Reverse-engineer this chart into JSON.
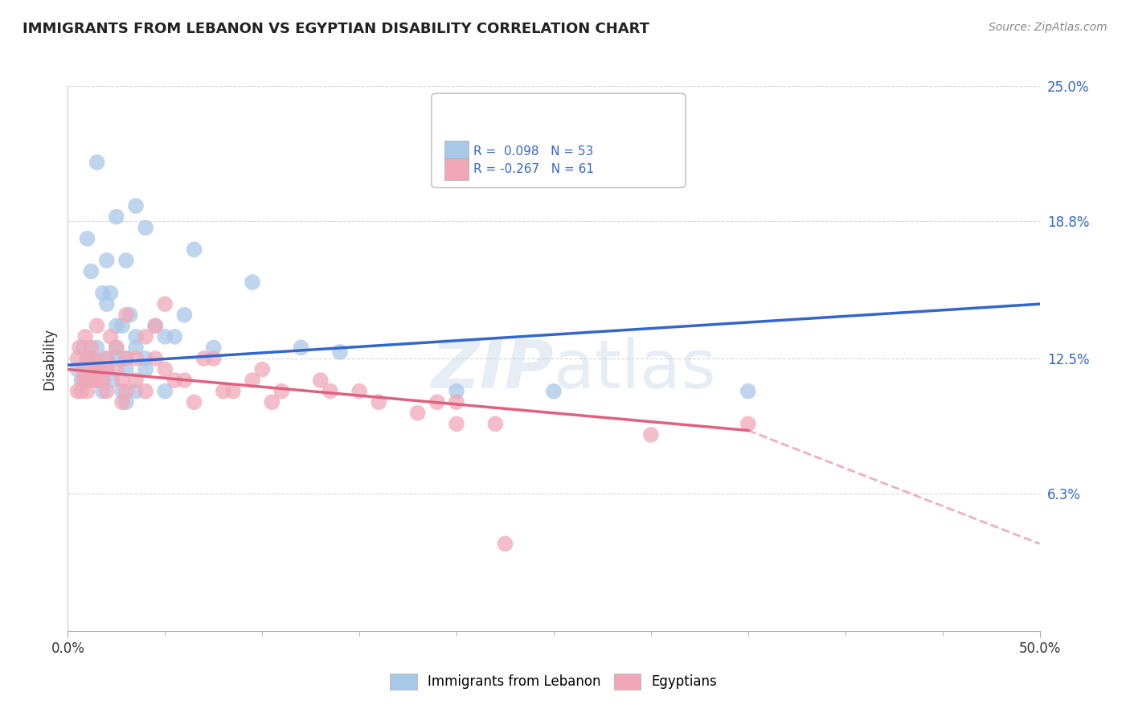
{
  "title": "IMMIGRANTS FROM LEBANON VS EGYPTIAN DISABILITY CORRELATION CHART",
  "source": "Source: ZipAtlas.com",
  "ylabel": "Disability",
  "xmin": 0.0,
  "xmax": 50.0,
  "ymin": 0.0,
  "ymax": 25.0,
  "legend_r1": "R =  0.098",
  "legend_n1": "N = 53",
  "legend_r2": "R = -0.267",
  "legend_n2": "N = 61",
  "legend_label1": "Immigrants from Lebanon",
  "legend_label2": "Egyptians",
  "color_blue": "#a8c8e8",
  "color_pink": "#f0a8b8",
  "trend_blue": "#3366cc",
  "trend_pink": "#e06080",
  "background_color": "#ffffff",
  "grid_color": "#d8d8d8",
  "blue_trend_x0": 0.0,
  "blue_trend_y0": 12.2,
  "blue_trend_x1": 50.0,
  "blue_trend_y1": 15.0,
  "pink_solid_x0": 0.0,
  "pink_solid_y0": 12.0,
  "pink_solid_x1": 35.0,
  "pink_solid_y1": 9.2,
  "pink_dash_x0": 35.0,
  "pink_dash_y0": 9.2,
  "pink_dash_x1": 50.0,
  "pink_dash_y1": 4.0,
  "blue_x": [
    1.5,
    3.5,
    6.5,
    9.5,
    2.5,
    4.0,
    1.0,
    2.0,
    3.0,
    1.2,
    2.2,
    1.8,
    3.2,
    2.8,
    4.5,
    5.5,
    6.0,
    7.5,
    0.8,
    1.5,
    2.5,
    3.5,
    1.3,
    2.0,
    2.5,
    3.0,
    0.5,
    1.0,
    1.5,
    2.0,
    3.0,
    4.0,
    1.2,
    0.7,
    2.3,
    1.8,
    3.5,
    2.8,
    5.0,
    1.0,
    1.5,
    3.0,
    1.0,
    4.0,
    14.0,
    20.0,
    25.0,
    35.0,
    2.0,
    2.5,
    3.5,
    5.0,
    12.0
  ],
  "blue_y": [
    21.5,
    19.5,
    17.5,
    16.0,
    19.0,
    18.5,
    18.0,
    17.0,
    17.0,
    16.5,
    15.5,
    15.5,
    14.5,
    14.0,
    14.0,
    13.5,
    14.5,
    13.0,
    13.0,
    13.0,
    13.0,
    13.0,
    12.5,
    12.5,
    12.5,
    12.5,
    12.0,
    12.0,
    12.0,
    12.0,
    12.0,
    12.0,
    11.5,
    11.5,
    11.5,
    11.0,
    11.0,
    11.0,
    11.0,
    11.5,
    11.5,
    10.5,
    12.5,
    12.5,
    12.8,
    11.0,
    11.0,
    11.0,
    15.0,
    14.0,
    13.5,
    13.5,
    13.0
  ],
  "pink_x": [
    0.5,
    0.8,
    1.0,
    1.2,
    1.5,
    1.8,
    0.6,
    0.9,
    1.3,
    1.6,
    2.0,
    2.5,
    3.0,
    2.2,
    1.5,
    2.8,
    3.5,
    1.0,
    0.5,
    1.0,
    1.5,
    0.8,
    2.0,
    3.0,
    1.5,
    2.5,
    4.0,
    0.7,
    1.2,
    2.0,
    2.8,
    3.5,
    5.0,
    7.0,
    6.0,
    8.0,
    9.5,
    10.0,
    11.0,
    13.0,
    15.0,
    18.0,
    20.0,
    3.0,
    5.5,
    4.5,
    7.5,
    5.0,
    20.0,
    4.0,
    6.5,
    4.5,
    8.5,
    10.5,
    13.5,
    16.0,
    19.0,
    22.0,
    30.0,
    35.0,
    22.5
  ],
  "pink_y": [
    12.5,
    12.0,
    12.5,
    13.0,
    12.0,
    11.5,
    13.0,
    13.5,
    12.5,
    12.0,
    12.5,
    12.0,
    12.5,
    13.5,
    14.0,
    11.5,
    12.5,
    11.5,
    11.0,
    11.0,
    11.5,
    11.5,
    11.0,
    11.0,
    12.0,
    13.0,
    13.5,
    11.0,
    11.5,
    12.0,
    10.5,
    11.5,
    12.0,
    12.5,
    11.5,
    11.0,
    11.5,
    12.0,
    11.0,
    11.5,
    11.0,
    10.0,
    10.5,
    14.5,
    11.5,
    14.0,
    12.5,
    15.0,
    9.5,
    11.0,
    10.5,
    12.5,
    11.0,
    10.5,
    11.0,
    10.5,
    10.5,
    9.5,
    9.0,
    9.5,
    4.0
  ]
}
